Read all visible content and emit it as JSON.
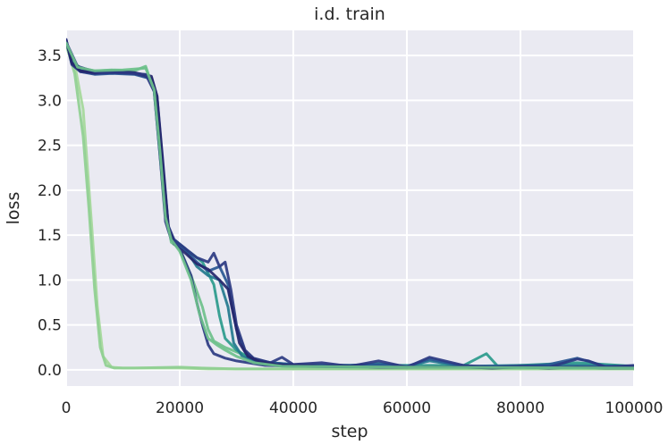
{
  "chart_data": {
    "type": "line",
    "title": "i.d. train",
    "xlabel": "step",
    "ylabel": "loss",
    "xlim": [
      0,
      100000
    ],
    "ylim": [
      -0.18,
      3.78
    ],
    "xticks": [
      0,
      20000,
      40000,
      60000,
      80000,
      100000
    ],
    "xtick_labels": [
      "0",
      "20000",
      "40000",
      "60000",
      "80000",
      "100000"
    ],
    "yticks": [
      0.0,
      0.5,
      1.0,
      1.5,
      2.0,
      2.5,
      3.0,
      3.5
    ],
    "ytick_labels": [
      "0.0",
      "0.5",
      "1.0",
      "1.5",
      "2.0",
      "2.5",
      "3.0",
      "3.5"
    ],
    "grid": true,
    "legend": "none",
    "background": "#eaeaf2",
    "grid_color": "#ffffff",
    "colormap": [
      "#a4d89a",
      "#6cc08b",
      "#2a9a8c",
      "#23788e",
      "#285793",
      "#2b3a82",
      "#25266d"
    ],
    "series": [
      {
        "color": "#a4d89a",
        "x": [
          0,
          1500,
          3000,
          4500,
          5500,
          6500,
          8000,
          10000,
          15000,
          20000,
          25000,
          30000,
          35000,
          40000,
          50000,
          60000,
          70000,
          80000,
          90000,
          100000
        ],
        "y": [
          3.65,
          3.4,
          2.9,
          1.6,
          0.7,
          0.15,
          0.03,
          0.02,
          0.02,
          0.02,
          0.01,
          0.01,
          0.01,
          0.01,
          0.01,
          0.01,
          0.01,
          0.01,
          0.01,
          0.01
        ]
      },
      {
        "color": "#8fcf91",
        "x": [
          0,
          1500,
          3000,
          4000,
          5000,
          6000,
          7000,
          8500,
          12000,
          20000,
          24000,
          30000,
          40000,
          60000,
          80000,
          100000
        ],
        "y": [
          3.62,
          3.3,
          2.6,
          1.8,
          0.9,
          0.25,
          0.05,
          0.02,
          0.02,
          0.03,
          0.02,
          0.01,
          0.01,
          0.01,
          0.01,
          0.01
        ]
      },
      {
        "color": "#6cc08b",
        "x": [
          0,
          1000,
          2500,
          5000,
          8000,
          12000,
          14000,
          15500,
          16500,
          17500,
          18500,
          20000,
          22000,
          24000,
          25000,
          26000,
          28000,
          30000,
          33000,
          36000,
          40000,
          50000,
          60000,
          70000,
          80000,
          90000,
          100000
        ],
        "y": [
          3.66,
          3.45,
          3.36,
          3.33,
          3.34,
          3.33,
          3.38,
          3.1,
          2.5,
          1.8,
          1.42,
          1.35,
          1.05,
          0.7,
          0.45,
          0.32,
          0.25,
          0.2,
          0.12,
          0.08,
          0.05,
          0.03,
          0.03,
          0.04,
          0.03,
          0.03,
          0.02
        ]
      },
      {
        "color": "#2a9a8c",
        "x": [
          0,
          1000,
          2500,
          5000,
          8000,
          12000,
          14500,
          15500,
          16500,
          17500,
          18500,
          20000,
          22000,
          24000,
          26000,
          27000,
          28000,
          30000,
          32000,
          34000,
          36000,
          40000,
          50000,
          60000,
          70000,
          74000,
          76000,
          80000,
          90000,
          100000
        ],
        "y": [
          3.66,
          3.43,
          3.34,
          3.31,
          3.32,
          3.3,
          3.28,
          3.1,
          2.4,
          1.7,
          1.45,
          1.38,
          1.3,
          1.2,
          0.95,
          0.6,
          0.35,
          0.22,
          0.14,
          0.1,
          0.08,
          0.06,
          0.05,
          0.05,
          0.05,
          0.18,
          0.04,
          0.05,
          0.08,
          0.04
        ]
      },
      {
        "color": "#23788e",
        "x": [
          0,
          1000,
          2500,
          5000,
          8000,
          12000,
          15000,
          16000,
          17000,
          18000,
          19000,
          21000,
          23000,
          25000,
          27000,
          28500,
          29500,
          31000,
          33000,
          36000,
          40000,
          50000,
          55000,
          60000,
          64000,
          70000,
          80000,
          90000,
          100000
        ],
        "y": [
          3.67,
          3.42,
          3.33,
          3.3,
          3.31,
          3.3,
          3.25,
          3.0,
          2.2,
          1.55,
          1.45,
          1.35,
          1.15,
          1.05,
          1.0,
          0.7,
          0.3,
          0.15,
          0.1,
          0.07,
          0.06,
          0.05,
          0.07,
          0.04,
          0.1,
          0.04,
          0.05,
          0.05,
          0.04
        ]
      },
      {
        "color": "#285793",
        "x": [
          0,
          1000,
          2500,
          5000,
          8000,
          12000,
          15000,
          16000,
          17000,
          18000,
          19000,
          21000,
          23000,
          25000,
          27000,
          28500,
          30000,
          31500,
          33000,
          36000,
          40000,
          45000,
          50000,
          55000,
          60000,
          64000,
          70000,
          80000,
          85000,
          90000,
          95000,
          100000
        ],
        "y": [
          3.67,
          3.41,
          3.32,
          3.29,
          3.3,
          3.29,
          3.24,
          3.0,
          2.3,
          1.6,
          1.42,
          1.33,
          1.2,
          1.1,
          1.15,
          0.95,
          0.45,
          0.2,
          0.12,
          0.08,
          0.06,
          0.05,
          0.05,
          0.06,
          0.04,
          0.12,
          0.04,
          0.04,
          0.06,
          0.13,
          0.04,
          0.04
        ]
      },
      {
        "color": "#2b3a82",
        "x": [
          0,
          1000,
          2500,
          5000,
          8000,
          12000,
          15000,
          16000,
          17000,
          18000,
          19000,
          21000,
          23000,
          25000,
          26000,
          27000,
          28000,
          29000,
          30000,
          31500,
          33000,
          36000,
          38000,
          40000,
          45000,
          50000,
          55000,
          60000,
          64000,
          70000,
          75000,
          80000,
          85000,
          90000,
          92000,
          95000,
          100000
        ],
        "y": [
          3.68,
          3.4,
          3.32,
          3.3,
          3.31,
          3.3,
          3.25,
          3.05,
          2.35,
          1.6,
          1.45,
          1.35,
          1.25,
          1.2,
          1.3,
          1.15,
          1.2,
          0.9,
          0.5,
          0.22,
          0.13,
          0.08,
          0.14,
          0.06,
          0.08,
          0.04,
          0.1,
          0.03,
          0.14,
          0.05,
          0.03,
          0.04,
          0.03,
          0.12,
          0.1,
          0.03,
          0.05
        ]
      },
      {
        "color": "#25266d",
        "x": [
          0,
          1000,
          2500,
          5000,
          8000,
          12000,
          15000,
          16000,
          17000,
          18000,
          19000,
          21000,
          23000,
          25000,
          27000,
          28500,
          29500,
          30500,
          32000,
          34000,
          37000,
          40000,
          45000,
          50000,
          55000,
          60000,
          65000,
          70000,
          75000,
          80000,
          85000,
          90000,
          95000,
          100000
        ],
        "y": [
          3.67,
          3.42,
          3.33,
          3.31,
          3.33,
          3.31,
          3.27,
          3.05,
          2.3,
          1.58,
          1.4,
          1.3,
          1.18,
          1.12,
          1.0,
          0.9,
          0.6,
          0.3,
          0.15,
          0.09,
          0.06,
          0.05,
          0.04,
          0.04,
          0.03,
          0.03,
          0.03,
          0.03,
          0.02,
          0.03,
          0.02,
          0.03,
          0.02,
          0.02
        ]
      },
      {
        "color": "#2b3a82",
        "x": [
          0,
          2000,
          5000,
          10000,
          14000,
          15500,
          16500,
          17500,
          18500,
          20000,
          22000,
          23000,
          24000,
          25000,
          26000,
          28000,
          30000,
          32000,
          35000,
          40000,
          60000,
          100000
        ],
        "y": [
          3.65,
          3.38,
          3.32,
          3.31,
          3.29,
          3.1,
          2.4,
          1.65,
          1.45,
          1.35,
          1.05,
          0.75,
          0.5,
          0.28,
          0.18,
          0.13,
          0.1,
          0.08,
          0.05,
          0.04,
          0.03,
          0.03
        ]
      },
      {
        "color": "#6cc08b",
        "x": [
          0,
          2000,
          5000,
          10000,
          14000,
          15500,
          16500,
          17500,
          18500,
          20000,
          22000,
          23500,
          25000,
          26500,
          28000,
          30000,
          33000,
          38000,
          60000,
          100000
        ],
        "y": [
          3.64,
          3.37,
          3.33,
          3.34,
          3.36,
          3.12,
          2.45,
          1.7,
          1.45,
          1.32,
          1.0,
          0.62,
          0.35,
          0.28,
          0.22,
          0.15,
          0.08,
          0.04,
          0.03,
          0.02
        ]
      }
    ]
  }
}
